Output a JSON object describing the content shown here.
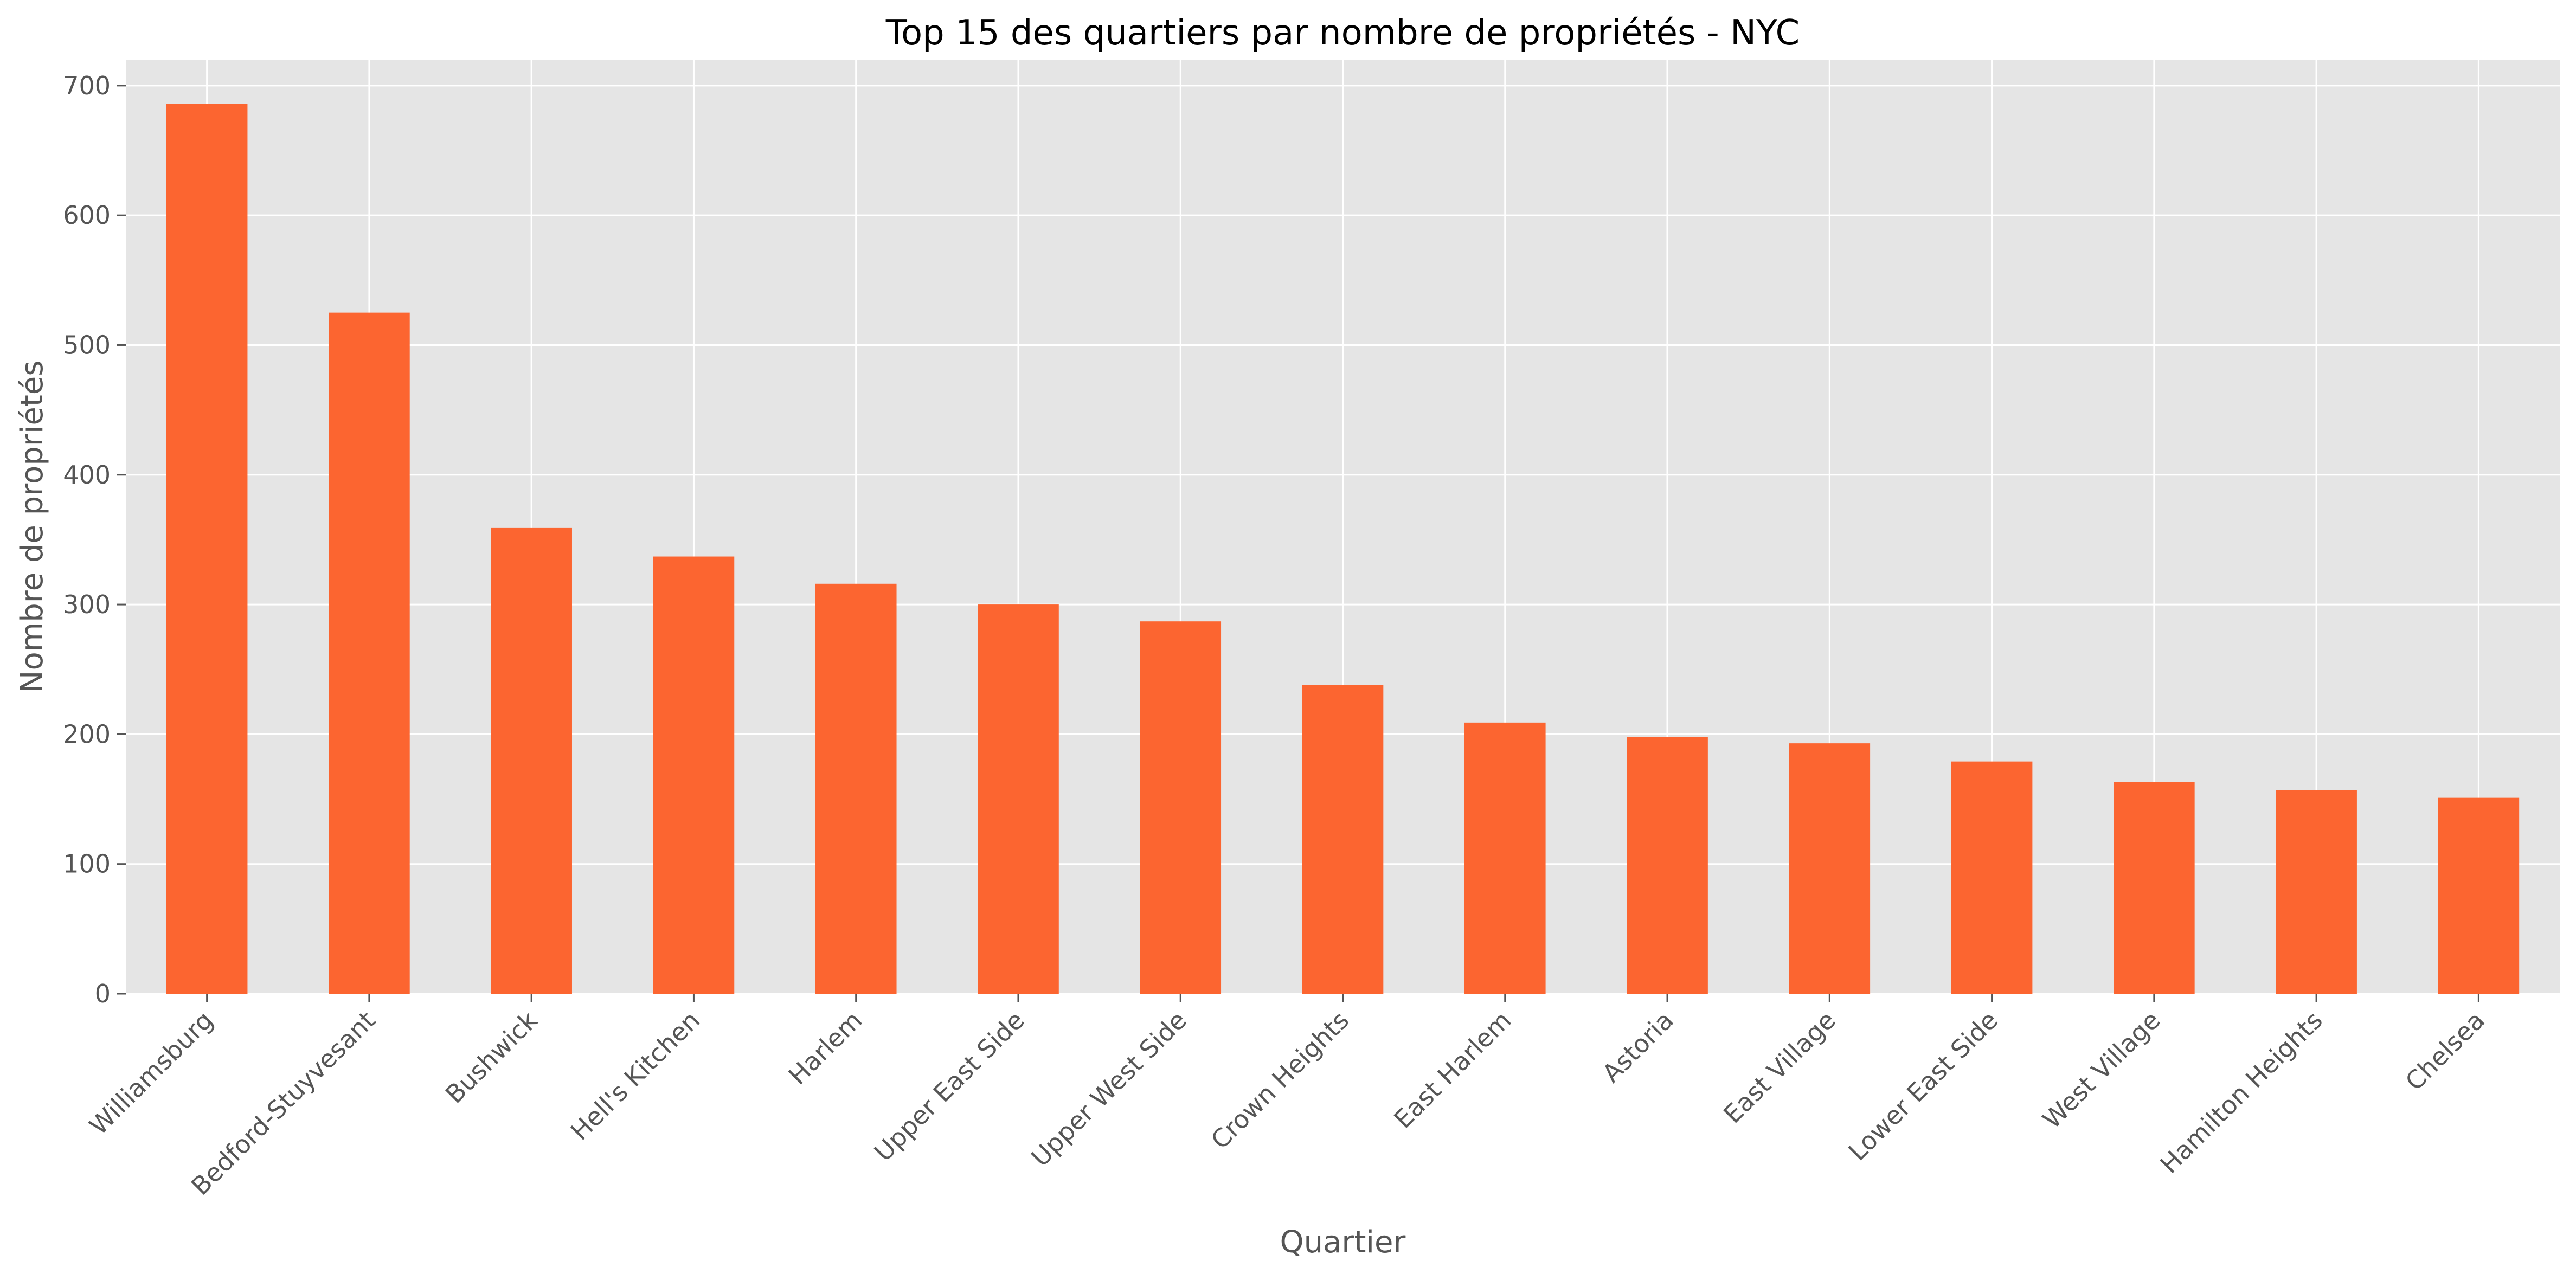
{
  "chart_data": {
    "type": "bar",
    "title": "Top 15 des quartiers par nombre de propriétés - NYC",
    "xlabel": "Quartier",
    "ylabel": "Nombre de propriétés",
    "categories": [
      "Williamsburg",
      "Bedford-Stuyvesant",
      "Bushwick",
      "Hell's Kitchen",
      "Harlem",
      "Upper East Side",
      "Upper West Side",
      "Crown Heights",
      "East Harlem",
      "Astoria",
      "East Village",
      "Lower East Side",
      "West Village",
      "Hamilton Heights",
      "Chelsea"
    ],
    "values": [
      686,
      525,
      359,
      337,
      316,
      300,
      287,
      238,
      209,
      198,
      193,
      179,
      163,
      157,
      151
    ],
    "ylim": [
      0,
      720
    ],
    "yticks": [
      0,
      100,
      200,
      300,
      400,
      500,
      600,
      700
    ],
    "grid": true,
    "colors": {
      "bar": "#fc6530",
      "plot_background": "#e5e5e5",
      "grid": "#ffffff"
    }
  }
}
